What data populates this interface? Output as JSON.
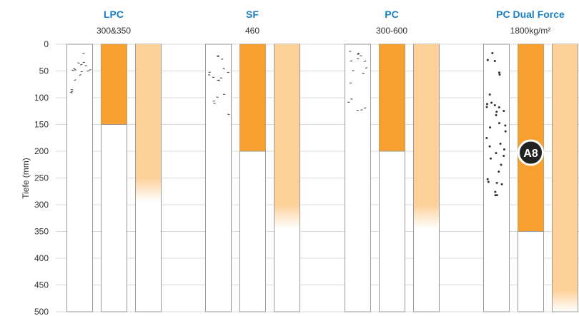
{
  "chart_data": {
    "type": "bar",
    "ylabel": "Tiefe (mm)",
    "ylim": [
      0,
      500
    ],
    "y_inverted": true,
    "yticks": [
      0,
      50,
      100,
      150,
      200,
      250,
      300,
      350,
      400,
      450,
      500
    ],
    "grid": true,
    "groups": [
      {
        "name": "LPC",
        "subtitle": "300&350",
        "solid_depth": 150,
        "fade_start": 250,
        "fade_end": 295,
        "texture_depth": 95,
        "texture": "sparse"
      },
      {
        "name": "SF",
        "subtitle": "460",
        "solid_depth": 200,
        "fade_start": 300,
        "fade_end": 345,
        "texture_depth": 140,
        "texture": "sparse"
      },
      {
        "name": "PC",
        "subtitle": "300-600",
        "solid_depth": 200,
        "fade_start": 300,
        "fade_end": 345,
        "texture_depth": 140,
        "texture": "sparse"
      },
      {
        "name": "PC Dual Force",
        "subtitle": "1800kg/m²",
        "solid_depth": 350,
        "fade_start": 460,
        "fade_end": 500,
        "texture_depth": 285,
        "texture": "dense",
        "badge": "A8"
      }
    ],
    "colors": {
      "title": "#1a7fc4",
      "solid": "#f7a030",
      "light": "#fdd09a",
      "grid": "#d8d8d8",
      "column_border": "#9a9a9a",
      "badge_bg": "#222222",
      "texture": "#333333"
    }
  }
}
